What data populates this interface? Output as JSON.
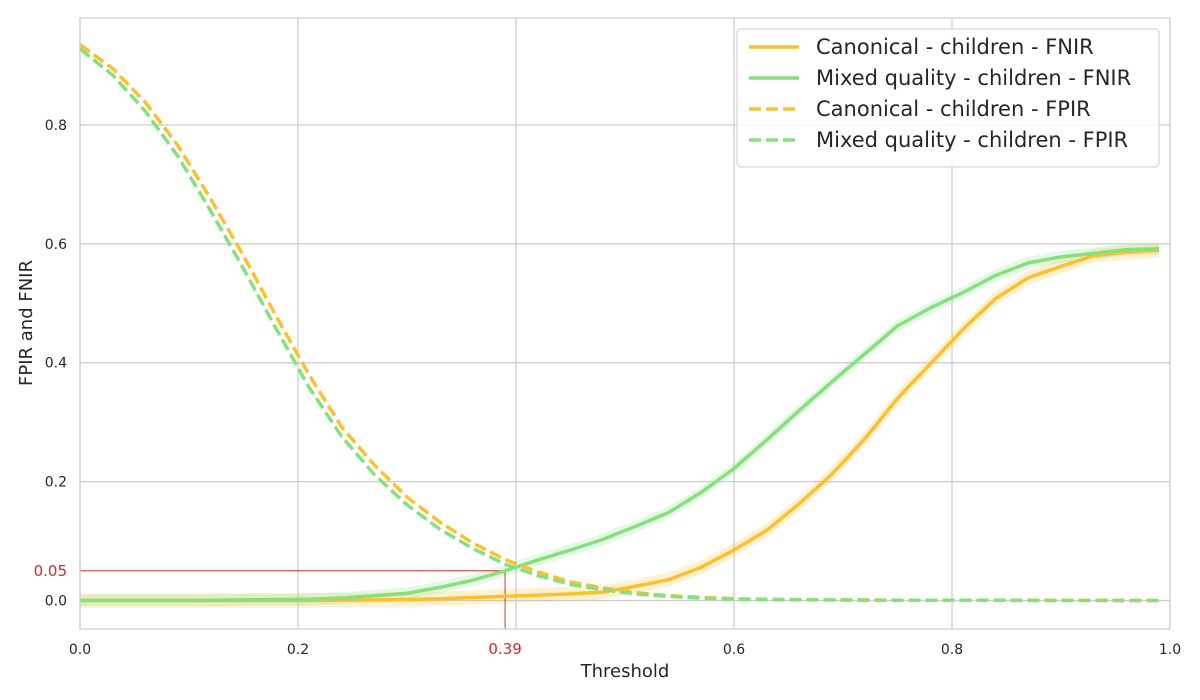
{
  "chart_data": {
    "type": "line",
    "xlabel": "Threshold",
    "ylabel": "FPIR and FNIR",
    "xlim": [
      0.0,
      1.0
    ],
    "ylim": [
      -0.048,
      0.98
    ],
    "xticks": [
      {
        "value": 0.0,
        "label": "0.0"
      },
      {
        "value": 0.2,
        "label": "0.2"
      },
      {
        "value": 0.4,
        "label": ""
      },
      {
        "value": 0.6,
        "label": "0.6"
      },
      {
        "value": 0.8,
        "label": "0.8"
      },
      {
        "value": 1.0,
        "label": "1.0"
      }
    ],
    "yticks": [
      {
        "value": 0.0,
        "label": "0.0"
      },
      {
        "value": 0.2,
        "label": "0.2"
      },
      {
        "value": 0.4,
        "label": "0.4"
      },
      {
        "value": 0.6,
        "label": "0.6"
      },
      {
        "value": 0.8,
        "label": "0.8"
      }
    ],
    "grid": true,
    "legend_position": "top-right",
    "marker": {
      "x": 0.39,
      "y": 0.05,
      "x_label": "0.39",
      "y_label": "0.05",
      "color": "#d62728"
    },
    "series": [
      {
        "name": "Canonical - children - FNIR",
        "color": "#fbc02d",
        "dash": "solid",
        "band": 0.012,
        "x": [
          0.0,
          0.03,
          0.06,
          0.09,
          0.12,
          0.15,
          0.18,
          0.21,
          0.24,
          0.27,
          0.3,
          0.33,
          0.36,
          0.39,
          0.42,
          0.45,
          0.48,
          0.51,
          0.54,
          0.57,
          0.6,
          0.63,
          0.66,
          0.69,
          0.72,
          0.75,
          0.78,
          0.81,
          0.84,
          0.87,
          0.9,
          0.93,
          0.96,
          0.99
        ],
        "y": [
          0.0,
          0.0,
          0.0,
          0.0,
          0.0,
          0.0,
          0.0,
          0.0,
          0.0005,
          0.001,
          0.0015,
          0.003,
          0.005,
          0.007,
          0.009,
          0.011,
          0.014,
          0.024,
          0.035,
          0.056,
          0.085,
          0.118,
          0.163,
          0.213,
          0.272,
          0.34,
          0.398,
          0.456,
          0.508,
          0.543,
          0.562,
          0.58,
          0.586,
          0.589
        ]
      },
      {
        "name": "Mixed quality - children - FNIR",
        "color": "#86e07e",
        "dash": "solid",
        "band": 0.01,
        "x": [
          0.0,
          0.03,
          0.06,
          0.09,
          0.12,
          0.15,
          0.18,
          0.21,
          0.24,
          0.27,
          0.3,
          0.33,
          0.36,
          0.39,
          0.42,
          0.45,
          0.48,
          0.51,
          0.54,
          0.57,
          0.6,
          0.63,
          0.66,
          0.69,
          0.72,
          0.75,
          0.78,
          0.81,
          0.84,
          0.87,
          0.9,
          0.93,
          0.96,
          0.99
        ],
        "y": [
          0.0,
          0.0,
          0.0,
          0.0,
          0.0005,
          0.001,
          0.0015,
          0.002,
          0.004,
          0.008,
          0.012,
          0.022,
          0.034,
          0.05,
          0.068,
          0.085,
          0.103,
          0.125,
          0.148,
          0.182,
          0.222,
          0.27,
          0.32,
          0.368,
          0.415,
          0.462,
          0.492,
          0.518,
          0.547,
          0.568,
          0.578,
          0.584,
          0.59,
          0.592
        ]
      },
      {
        "name": "Canonical - children - FPIR",
        "color": "#fbc02d",
        "dash": "dashed",
        "band": 0,
        "x": [
          0.0,
          0.03,
          0.06,
          0.09,
          0.12,
          0.15,
          0.18,
          0.21,
          0.24,
          0.27,
          0.3,
          0.33,
          0.36,
          0.39,
          0.42,
          0.45,
          0.48,
          0.51,
          0.54,
          0.57,
          0.6,
          0.63,
          0.66,
          0.69,
          0.72,
          0.75,
          0.78,
          0.81,
          0.84,
          0.87,
          0.9,
          0.93,
          0.96,
          0.99
        ],
        "y": [
          0.935,
          0.895,
          0.838,
          0.765,
          0.675,
          0.58,
          0.478,
          0.38,
          0.292,
          0.228,
          0.174,
          0.132,
          0.097,
          0.069,
          0.048,
          0.031,
          0.021,
          0.013,
          0.008,
          0.005,
          0.003,
          0.002,
          0.0015,
          0.001,
          0.001,
          0.0005,
          0.0005,
          0.0005,
          0.0005,
          0.0005,
          0.0005,
          0.0005,
          0.0,
          0.0
        ]
      },
      {
        "name": "Mixed quality - children - FPIR",
        "color": "#86e07e",
        "dash": "dashed",
        "band": 0,
        "x": [
          0.0,
          0.03,
          0.06,
          0.09,
          0.12,
          0.15,
          0.18,
          0.21,
          0.24,
          0.27,
          0.3,
          0.33,
          0.36,
          0.39,
          0.42,
          0.45,
          0.48,
          0.51,
          0.54,
          0.57,
          0.6,
          0.63,
          0.66,
          0.69,
          0.72,
          0.75,
          0.78,
          0.81,
          0.84,
          0.87,
          0.9,
          0.93,
          0.96,
          0.99
        ],
        "y": [
          0.928,
          0.884,
          0.823,
          0.747,
          0.655,
          0.558,
          0.457,
          0.359,
          0.276,
          0.212,
          0.161,
          0.12,
          0.088,
          0.061,
          0.042,
          0.027,
          0.018,
          0.011,
          0.007,
          0.004,
          0.002,
          0.0015,
          0.001,
          0.001,
          0.0005,
          0.0005,
          0.0005,
          0.0005,
          0.0005,
          0.0,
          0.0,
          0.0,
          0.0,
          0.0
        ]
      }
    ]
  }
}
